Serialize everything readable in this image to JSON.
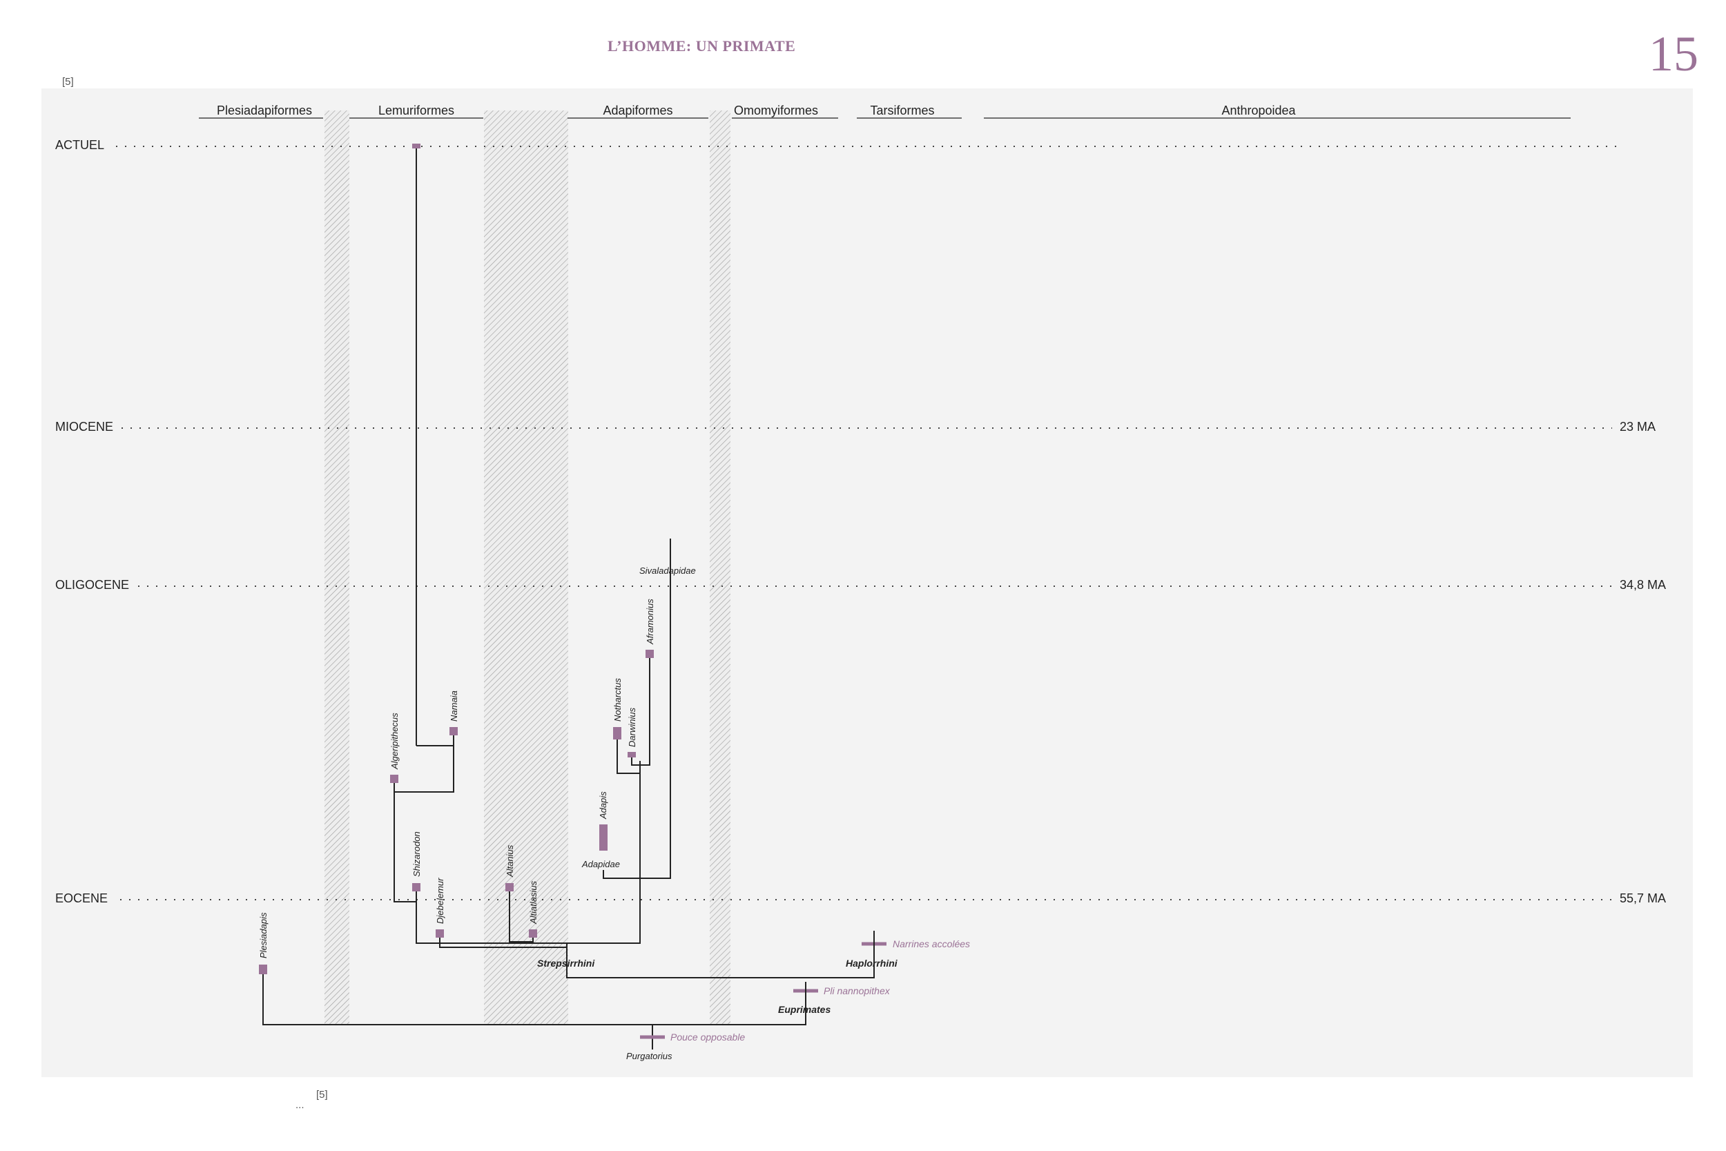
{
  "header": {
    "title": "L’HOMME: UN PRIMATE",
    "page_number": "15"
  },
  "footnote_ref_top": "[5]",
  "footnote_ref_bottom": "[5]",
  "footer_ellipsis": "...",
  "colors": {
    "accent": "#9b7397",
    "panel_bg": "#f3f3f3",
    "line": "#222222"
  },
  "diagram": {
    "clades": [
      {
        "name": "Plesiadapiformes"
      },
      {
        "name": "Lemuriformes"
      },
      {
        "name": "Adapiformes"
      },
      {
        "name": "Omomyiformes"
      },
      {
        "name": "Tarsiformes"
      },
      {
        "name": "Anthropoidea"
      }
    ],
    "eras": [
      {
        "name": "ACTUEL",
        "age": ""
      },
      {
        "name": "MIOCENE",
        "age": "23 MA"
      },
      {
        "name": "OLIGOCENE",
        "age": "34,8 MA"
      },
      {
        "name": "EOCENE",
        "age": "55,7 MA"
      }
    ],
    "taxa": {
      "plesiadapis": "Plesiadapis",
      "algeripithecus": "Algeripithecus",
      "namaia": "Namaia",
      "shizarodon": "Shizarodon",
      "djebelemur": "Djebelemur",
      "altanius": "Altanius",
      "altiatlasius": "Altiatlasius",
      "adapis": "Adapis",
      "notharctus": "Notharctus",
      "darwinius": "Darwinius",
      "aframonius": "Aframonius"
    },
    "groups": {
      "sivaladapidae": "Sivaladapidae",
      "adapidae": "Adapidae",
      "strepsirrhini": "Strepsirrhini",
      "haplorrhini": "Haplorrhini",
      "euprimates": "Euprimates",
      "purgatorius": "Purgatorius"
    },
    "characters": {
      "narrines": "Narrines accolées",
      "pli": "Pli nannopithex",
      "pouce": "Pouce opposable"
    }
  }
}
